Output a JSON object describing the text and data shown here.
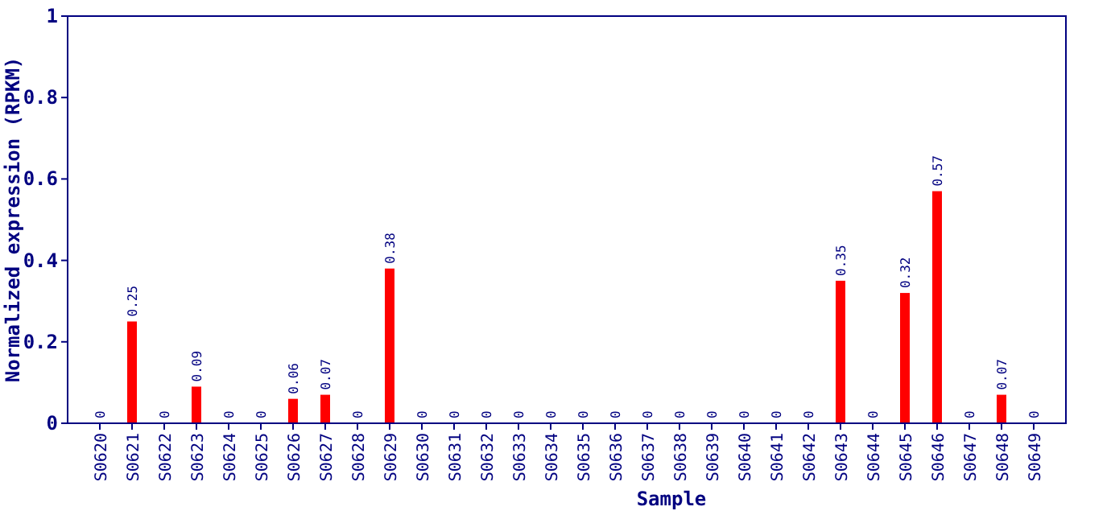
{
  "chart_data": {
    "type": "bar",
    "xlabel": "Sample",
    "ylabel": "Normalized expression (RPKM)",
    "categories": [
      "S0620",
      "S0621",
      "S0622",
      "S0623",
      "S0624",
      "S0625",
      "S0626",
      "S0627",
      "S0628",
      "S0629",
      "S0630",
      "S0631",
      "S0632",
      "S0633",
      "S0634",
      "S0635",
      "S0636",
      "S0637",
      "S0638",
      "S0639",
      "S0640",
      "S0641",
      "S0642",
      "S0643",
      "S0644",
      "S0645",
      "S0646",
      "S0647",
      "S0648",
      "S0649"
    ],
    "values": [
      0,
      0.25,
      0,
      0.09,
      0,
      0,
      0.06,
      0.07,
      0,
      0.38,
      0,
      0,
      0,
      0,
      0,
      0,
      0,
      0,
      0,
      0,
      0,
      0,
      0,
      0.35,
      0,
      0.32,
      0.57,
      0,
      0.07,
      0
    ],
    "color": "#ff0000",
    "ylim": [
      0,
      1
    ],
    "yticks": [
      0,
      0.2,
      0.4,
      0.6,
      0.8,
      1
    ],
    "data_labels": true
  }
}
